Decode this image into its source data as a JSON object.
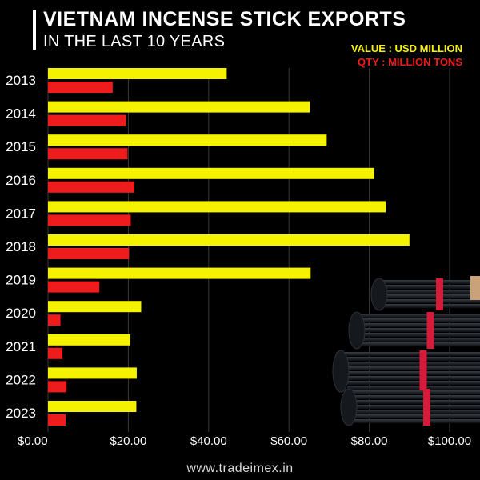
{
  "colors": {
    "value": "#f5f200",
    "qty": "#ee1c1c",
    "background": "#000000",
    "text": "#ffffff"
  },
  "header": {
    "title": "VIETNAM INCENSE STICK EXPORTS",
    "subtitle": "IN THE LAST 10 YEARS"
  },
  "legend": {
    "value_label": "VALUE : USD MILLION",
    "qty_label": "QTY :  MILLION TONS",
    "placement": "top-right"
  },
  "footer": {
    "website": "www.tradeimex.in"
  },
  "image": {
    "icon": "incense-bundles-illustration"
  },
  "chart_data": {
    "type": "bar",
    "orientation": "horizontal",
    "categories": [
      "2013",
      "2014",
      "2015",
      "2016",
      "2017",
      "2018",
      "2019",
      "2020",
      "2021",
      "2022",
      "2023"
    ],
    "series": [
      {
        "name": "VALUE : USD MILLION",
        "values": [
          44.5,
          65.2,
          69.4,
          81.2,
          84.1,
          90.0,
          65.4,
          23.2,
          20.5,
          22.1,
          22.0
        ]
      },
      {
        "name": "QTY :  MILLION TONS",
        "values": [
          16.1,
          19.4,
          19.8,
          21.5,
          20.6,
          20.2,
          12.8,
          3.1,
          3.6,
          4.6,
          4.4
        ]
      }
    ],
    "xlim": [
      0,
      100
    ],
    "x_ticks": [
      "$0.00",
      "$20.00",
      "$40.00",
      "$60.00",
      "$80.00",
      "$100.00"
    ],
    "grid": "vertical"
  }
}
